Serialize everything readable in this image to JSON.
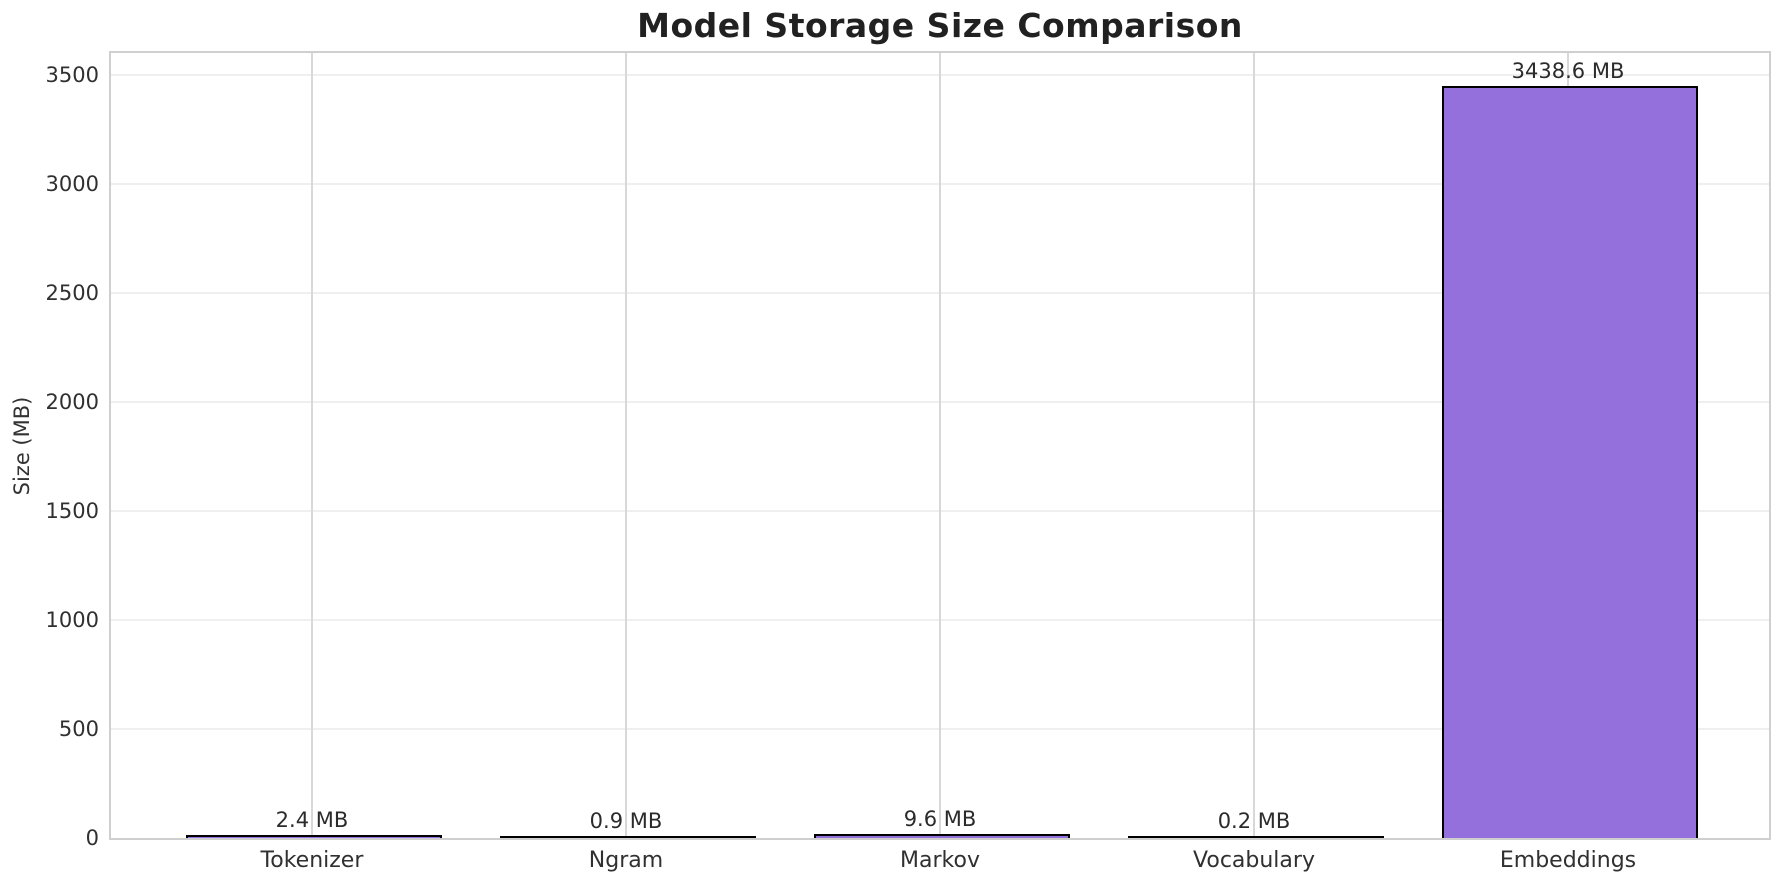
{
  "chart_data": {
    "type": "bar",
    "title": "Model Storage Size Comparison",
    "xlabel": "",
    "ylabel": "Size (MB)",
    "categories": [
      "Tokenizer",
      "Ngram",
      "Markov",
      "Vocabulary",
      "Embeddings"
    ],
    "values": [
      2.4,
      0.9,
      9.6,
      0.2,
      3438.6
    ],
    "bar_labels": [
      "2.4 MB",
      "0.9 MB",
      "9.6 MB",
      "0.2 MB",
      "3438.6 MB"
    ],
    "yticks": [
      0,
      500,
      1000,
      1500,
      2000,
      2500,
      3000,
      3500
    ],
    "ylim": [
      0,
      3600
    ],
    "grid": true,
    "legend_position": "none",
    "colors": {
      "bar_fill": "#9370DB",
      "bar_edge": "#000000",
      "grid_horizontal": "#efefef",
      "grid_vertical": "#d8d8d8",
      "spine": "#cfcfcf",
      "tick_text": "#303030",
      "title_text": "#212121"
    }
  }
}
